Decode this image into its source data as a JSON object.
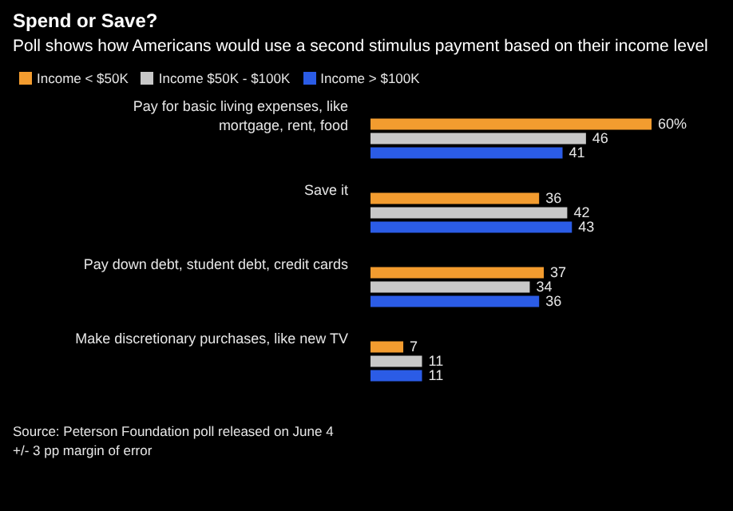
{
  "chart_data": {
    "type": "bar",
    "orientation": "horizontal",
    "title": "Spend or Save?",
    "subtitle": "Poll shows how Americans would use a second stimulus payment based on their income level",
    "categories": [
      "Pay for basic living expenses, like mortgage, rent, food",
      "Save it",
      "Pay down debt, student debt, credit cards",
      "Make discretionary purchases, like new TV"
    ],
    "series": [
      {
        "name": "Income < $50K",
        "color": "#f39c2f",
        "values": [
          60,
          36,
          37,
          7
        ],
        "value_labels": [
          "60%",
          "36",
          "37",
          "7"
        ]
      },
      {
        "name": "Income $50K - $100K",
        "color": "#c8c8c8",
        "values": [
          46,
          42,
          34,
          11
        ],
        "value_labels": [
          "46",
          "42",
          "34",
          "11"
        ]
      },
      {
        "name": "Income > $100K",
        "color": "#2b5ce6",
        "values": [
          41,
          43,
          36,
          11
        ],
        "value_labels": [
          "41",
          "43",
          "36",
          "11"
        ]
      }
    ],
    "legend": "top left",
    "annotations": [
      "Source: Peterson Foundation poll released on June 4",
      "+/- 3 pp margin of error"
    ]
  }
}
